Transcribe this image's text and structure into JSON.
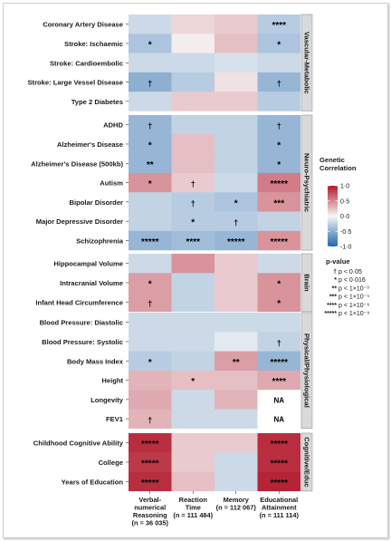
{
  "chart_data": {
    "type": "heatmap",
    "colors": {
      "high": "#b2182b",
      "mid": "#f7f7f7",
      "low": "#2166ac",
      "panel_background": "#e6e6e6",
      "strip_background": "#d9d9d9",
      "na_fill": "#ffffff"
    },
    "columns": [
      {
        "label_lines": [
          "Verbal-",
          "numerical",
          "Reasoning",
          "(n = 36 035)"
        ]
      },
      {
        "label_lines": [
          "Reaction",
          "Time",
          "(n = 111 484)"
        ]
      },
      {
        "label_lines": [
          "Memory",
          "(n = 112 067)"
        ]
      },
      {
        "label_lines": [
          "Educational",
          "Attainment",
          "(n = 111 114)"
        ]
      }
    ],
    "groups": [
      {
        "label": "Vascular-Metabolic",
        "rows": [
          {
            "label": "Coronary Artery Disease",
            "values": [
              -0.2,
              0.15,
              0.2,
              -0.3
            ],
            "marks": [
              "",
              "",
              "",
              "****"
            ]
          },
          {
            "label": "Stroke: Ischaemic",
            "values": [
              -0.35,
              0.05,
              0.25,
              -0.35
            ],
            "marks": [
              "*",
              "",
              "",
              "*"
            ]
          },
          {
            "label": "Stroke: Cardioembolic",
            "values": [
              -0.2,
              -0.2,
              -0.15,
              -0.2
            ],
            "marks": [
              "",
              "",
              "",
              ""
            ]
          },
          {
            "label": "Stroke: Large Vessel Disease",
            "values": [
              -0.5,
              -0.3,
              0.1,
              -0.45
            ],
            "marks": [
              "†",
              "",
              "",
              "†"
            ]
          },
          {
            "label": "Type 2 Diabetes",
            "values": [
              -0.2,
              0.2,
              0.2,
              -0.3
            ],
            "marks": [
              "",
              "",
              "",
              ""
            ]
          }
        ]
      },
      {
        "label": "Neuro-Psychiatric",
        "rows": [
          {
            "label": "ADHD",
            "values": [
              -0.45,
              -0.25,
              -0.25,
              -0.45
            ],
            "marks": [
              "†",
              "",
              "",
              "†"
            ]
          },
          {
            "label": "Alzheimer's Disease",
            "values": [
              -0.45,
              0.25,
              -0.25,
              -0.45
            ],
            "marks": [
              "*",
              "",
              "",
              "*"
            ]
          },
          {
            "label": "Alzheimer's Disease (500kb)",
            "values": [
              -0.45,
              0.25,
              -0.25,
              -0.45
            ],
            "marks": [
              "**",
              "",
              "",
              "*"
            ]
          },
          {
            "label": "Autism",
            "values": [
              0.45,
              0.2,
              -0.2,
              0.55
            ],
            "marks": [
              "*",
              "†",
              "",
              "*****"
            ]
          },
          {
            "label": "Bipolar Disorder",
            "values": [
              -0.25,
              -0.3,
              -0.35,
              0.45
            ],
            "marks": [
              "",
              "†",
              "*",
              "***"
            ]
          },
          {
            "label": "Major Depressive Disorder",
            "values": [
              -0.25,
              -0.3,
              -0.3,
              -0.25
            ],
            "marks": [
              "",
              "*",
              "†",
              ""
            ]
          },
          {
            "label": "Schizophrenia",
            "values": [
              -0.45,
              -0.4,
              -0.45,
              0.45
            ],
            "marks": [
              "*****",
              "****",
              "*****",
              "*****"
            ]
          }
        ]
      },
      {
        "label": "Brain",
        "rows": [
          {
            "label": "Hippocampal Volume",
            "values": [
              -0.2,
              0.45,
              0.2,
              -0.2
            ],
            "marks": [
              "",
              "",
              "",
              ""
            ]
          },
          {
            "label": "Intracranial Volume",
            "values": [
              0.4,
              -0.25,
              0.2,
              0.45
            ],
            "marks": [
              "*",
              "",
              "",
              "*"
            ]
          },
          {
            "label": "Infant Head Circumference",
            "values": [
              0.4,
              -0.25,
              0.2,
              0.45
            ],
            "marks": [
              "†",
              "",
              "",
              "*"
            ]
          }
        ]
      },
      {
        "label": "Physical/Physiological",
        "rows": [
          {
            "label": "Blood Pressure: Diastolic",
            "values": [
              -0.2,
              -0.2,
              -0.2,
              -0.2
            ],
            "marks": [
              "",
              "",
              "",
              ""
            ]
          },
          {
            "label": "Blood Pressure: Systolic",
            "values": [
              -0.2,
              -0.2,
              -0.1,
              -0.25
            ],
            "marks": [
              "",
              "",
              "",
              "†"
            ]
          },
          {
            "label": "Body Mass Index",
            "values": [
              -0.3,
              -0.25,
              0.4,
              -0.45
            ],
            "marks": [
              "*",
              "",
              "**",
              "*****"
            ]
          },
          {
            "label": "Height",
            "values": [
              0.3,
              0.25,
              0.25,
              0.35
            ],
            "marks": [
              "",
              "*",
              "",
              "****"
            ]
          },
          {
            "label": "Longevity",
            "values": [
              0.35,
              -0.2,
              0.3,
              null
            ],
            "marks": [
              "",
              "",
              "",
              "NA"
            ]
          },
          {
            "label": "FEV1",
            "values": [
              0.3,
              -0.2,
              -0.2,
              null
            ],
            "marks": [
              "†",
              "",
              "",
              "NA"
            ]
          }
        ]
      },
      {
        "label": "Cognitive/Educ",
        "rows": [
          {
            "label": "Childhood Cognitive Ability",
            "values": [
              0.9,
              0.2,
              0.2,
              0.9
            ],
            "marks": [
              "*****",
              "",
              "",
              "*****"
            ]
          },
          {
            "label": "College",
            "values": [
              0.85,
              0.2,
              -0.2,
              0.9
            ],
            "marks": [
              "*****",
              "",
              "",
              "*****"
            ]
          },
          {
            "label": "Years of Education",
            "values": [
              0.9,
              0.25,
              -0.2,
              0.95
            ],
            "marks": [
              "*****",
              "",
              "",
              "*****"
            ]
          }
        ]
      }
    ],
    "colorbar": {
      "title_lines": [
        "Genetic",
        "Correlation"
      ],
      "range": [
        -1,
        1
      ],
      "ticks": [
        {
          "value": 1,
          "label": "1·0"
        },
        {
          "value": 0.5,
          "label": "0·5"
        },
        {
          "value": 0,
          "label": "0·0"
        },
        {
          "value": -0.5,
          "label": "-0·5"
        },
        {
          "value": -1,
          "label": "-1·0"
        }
      ]
    },
    "pvalue_legend": {
      "title": "p-value",
      "items": [
        {
          "symbol": "†",
          "text": "p < 0·05"
        },
        {
          "symbol": "*",
          "text": "p < 0·016"
        },
        {
          "symbol": "**",
          "text": "p < 1×10⁻³"
        },
        {
          "symbol": "***",
          "text": "p < 1×10⁻⁵"
        },
        {
          "symbol": "****",
          "text": "p < 1×10⁻⁶"
        },
        {
          "symbol": "*****",
          "text": "p < 1×10⁻⁹"
        }
      ]
    }
  }
}
